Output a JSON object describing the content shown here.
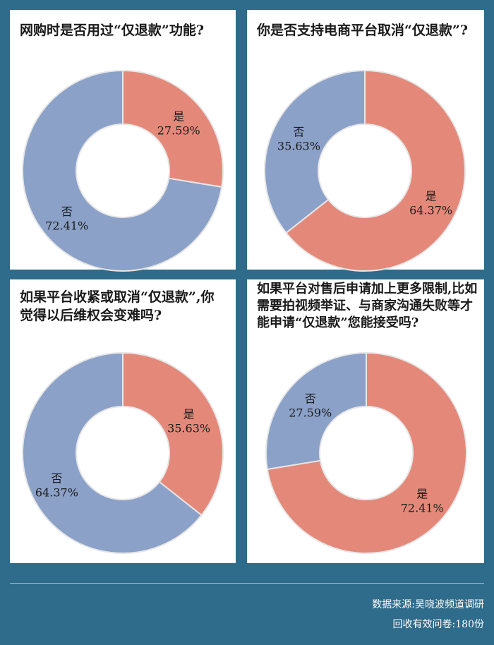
{
  "colors": {
    "yes": "#e4897a",
    "no": "#8ba1c8",
    "background": "#2f6b8a",
    "panel": "#ffffff"
  },
  "chart_data": [
    {
      "type": "pie",
      "donut": true,
      "title": "网购时是否用过“仅退款”功能?",
      "slices": [
        {
          "label": "是",
          "value": 27.59,
          "display": "27.59%"
        },
        {
          "label": "否",
          "value": 72.41,
          "display": "72.41%"
        }
      ]
    },
    {
      "type": "pie",
      "donut": true,
      "title": "你是否支持电商平台取消“仅退款”?",
      "slices": [
        {
          "label": "是",
          "value": 64.37,
          "display": "64.37%"
        },
        {
          "label": "否",
          "value": 35.63,
          "display": "35.63%"
        }
      ]
    },
    {
      "type": "pie",
      "donut": true,
      "title": "如果平台收紧或取消“仅退款”,你觉得以后维权会变难吗?",
      "slices": [
        {
          "label": "是",
          "value": 35.63,
          "display": "35.63%"
        },
        {
          "label": "否",
          "value": 64.37,
          "display": "64.37%"
        }
      ]
    },
    {
      "type": "pie",
      "donut": true,
      "title": "如果平台对售后申请加上更多限制,比如需要拍视频举证、与商家沟通失败等才能申请“仅退款”您能接受吗?",
      "slices": [
        {
          "label": "是",
          "value": 72.41,
          "display": "72.41%"
        },
        {
          "label": "否",
          "value": 27.59,
          "display": "27.59%"
        }
      ]
    }
  ],
  "footer": {
    "source": "数据来源:吴晓波频道调研",
    "sample": "回收有效问卷:180份"
  }
}
